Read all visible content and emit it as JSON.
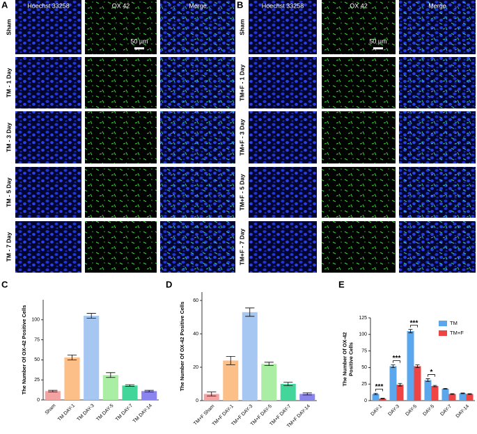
{
  "panels": [
    {
      "letter": "A",
      "columns": [
        "Hoechst 33258",
        "OX 42",
        "Merge"
      ],
      "rows": [
        "Sham",
        "TM - 1 Day",
        "TM - 3 Day",
        "TM - 5 Day",
        "TM - 7 Day"
      ],
      "scale_bar": "50 µm"
    },
    {
      "letter": "B",
      "columns": [
        "Hoechst 33258",
        "OX 42",
        "Merge"
      ],
      "rows": [
        "Sham",
        "TM+F - 1 Day",
        "TM+F - 3 Day",
        "TM+F - 5 Day",
        "TM+F - 7 Day"
      ],
      "scale_bar": "50 µm"
    }
  ],
  "chart_data": [
    {
      "type": "bar",
      "panel": "C",
      "ylabel": "The Number Of OX-42 Positive Cells",
      "categories": [
        "Sham",
        "TM DAY-1",
        "TM DAY-3",
        "TM DAY-5",
        "TM DAY-7",
        "TM DAY-14"
      ],
      "values": [
        11,
        53,
        105,
        31,
        18,
        11
      ],
      "errors": [
        1,
        3,
        3,
        3,
        1,
        1
      ],
      "colors": [
        "#f4a3a3",
        "#fdbf88",
        "#a7c7f3",
        "#a9eea2",
        "#42d69a",
        "#8a84ee"
      ],
      "ylim": [
        0,
        125
      ],
      "yticks": [
        0,
        25,
        50,
        75,
        100
      ]
    },
    {
      "type": "bar",
      "panel": "D",
      "ylabel": "The Number Of OX-42 Positive Cells",
      "categories": [
        "TM+F Sham",
        "TM+F DAY-1",
        "TM+F DAY-3",
        "TM+F DAY-5",
        "TM+F DAY-7",
        "TM+F DAY-14"
      ],
      "values": [
        4,
        24,
        53,
        22,
        10,
        4
      ],
      "errors": [
        1.2,
        2.5,
        2.5,
        1,
        1,
        0.6
      ],
      "colors": [
        "#f4a3a3",
        "#fdbf88",
        "#a7c7f3",
        "#a9eea2",
        "#42d69a",
        "#8a84ee"
      ],
      "ylim": [
        0,
        65
      ],
      "yticks": [
        0,
        20,
        40,
        60
      ]
    },
    {
      "type": "grouped_bar",
      "panel": "E",
      "ylabel": [
        "The Number Of OX-42",
        "Positive Cells"
      ],
      "categories": [
        "DAY-1",
        "DAY-3",
        "DAY-5",
        "DAY-5",
        "DAY-7",
        "DAY-14"
      ],
      "series": [
        {
          "name": "TM",
          "color": "#5aa7ee",
          "values": [
            10,
            52,
            105,
            31,
            18,
            11
          ],
          "errors": [
            1,
            2,
            2.5,
            2,
            0.5,
            0.5
          ]
        },
        {
          "name": "TM+F",
          "color": "#ee4444",
          "values": [
            3,
            24,
            52,
            22,
            10,
            10
          ],
          "errors": [
            0.5,
            2,
            2,
            1,
            0.5,
            0.5
          ]
        }
      ],
      "significance": [
        "***",
        "***",
        "***",
        "*",
        null,
        null
      ],
      "ylim": [
        0,
        125
      ],
      "yticks": [
        0,
        25,
        50,
        75,
        100,
        125
      ],
      "legend": "upper right"
    }
  ]
}
